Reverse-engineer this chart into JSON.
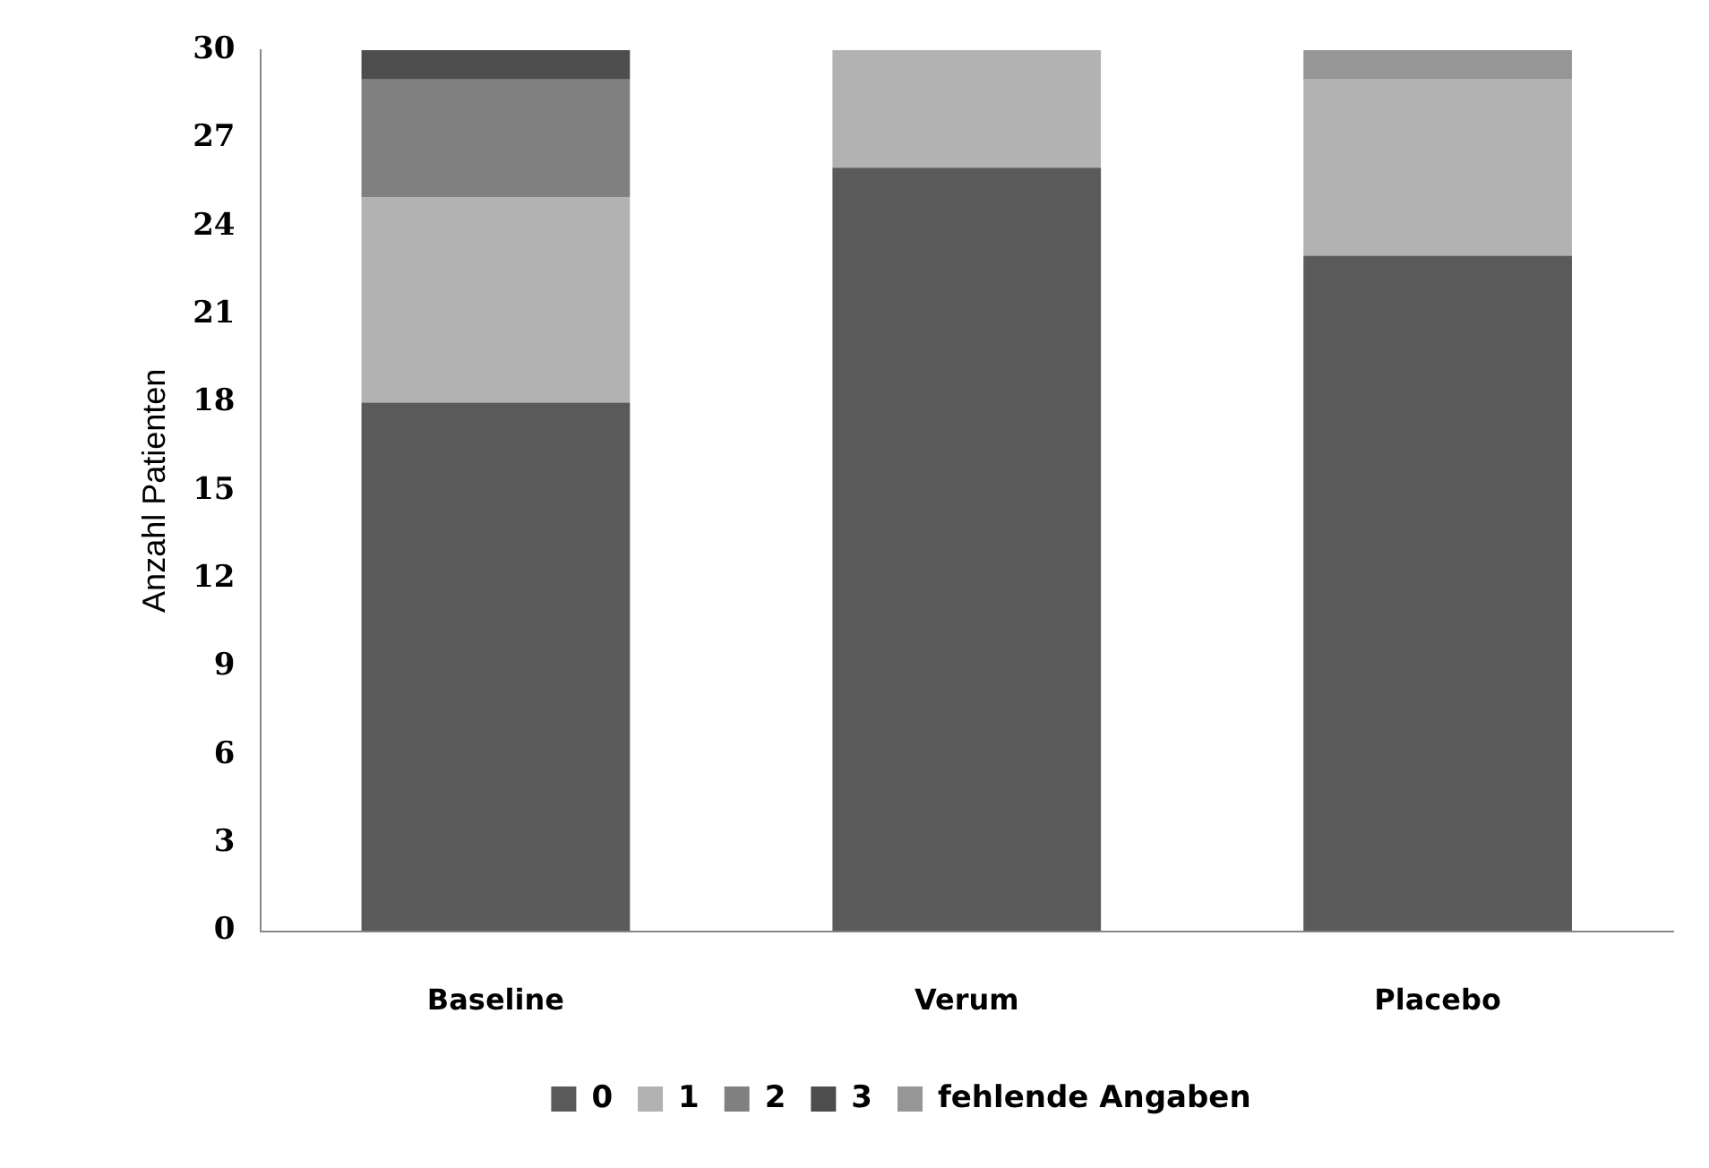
{
  "chart_data": {
    "type": "bar",
    "stacked": true,
    "ylabel": "Anzahl Patienten",
    "categories": [
      "Baseline",
      "Verum",
      "Placebo"
    ],
    "series": [
      {
        "name": "0",
        "color": "#5a5a5a",
        "values": [
          18,
          26,
          23
        ]
      },
      {
        "name": "1",
        "color": "#b2b2b2",
        "values": [
          7,
          4,
          6
        ]
      },
      {
        "name": "2",
        "color": "#808080",
        "values": [
          4,
          0,
          0
        ]
      },
      {
        "name": "3",
        "color": "#4d4d4d",
        "values": [
          1,
          0,
          0
        ]
      },
      {
        "name": "fehlende Angaben",
        "color": "#969696",
        "values": [
          0,
          0,
          1
        ]
      }
    ],
    "ylim": [
      0,
      30
    ],
    "yticks": [
      0,
      3,
      6,
      9,
      12,
      15,
      18,
      21,
      24,
      27,
      30
    ],
    "grid": false,
    "legend": "bottom"
  }
}
